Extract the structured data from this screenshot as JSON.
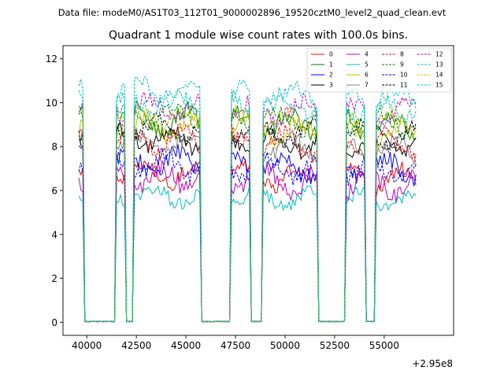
{
  "figure": {
    "suptitle": "Data file: modeM0/AS1T03_112T01_9000002896_19520cztM0_level2_quad_clean.evt"
  },
  "chart_data": {
    "type": "line",
    "title": "Quadrant 1 module wise count rates with 100.0s bins.",
    "xlabel": "",
    "ylabel": "",
    "x_offset_label": "+2.95e8",
    "xlim": [
      38800,
      58500
    ],
    "ylim": [
      -0.6,
      12.6
    ],
    "xticks": [
      40000,
      42500,
      45000,
      47500,
      50000,
      52500,
      55000
    ],
    "xtick_labels": [
      "40000",
      "42500",
      "45000",
      "47500",
      "50000",
      "52500",
      "55000"
    ],
    "yticks": [
      0,
      2,
      4,
      6,
      8,
      10,
      12
    ],
    "ytick_labels": [
      "0",
      "2",
      "4",
      "6",
      "8",
      "10",
      "12"
    ],
    "x_start": 39600,
    "bin_width": 100,
    "on_intervals": [
      [
        39600,
        39800
      ],
      [
        41500,
        41900
      ],
      [
        42400,
        45700
      ],
      [
        47300,
        48200
      ],
      [
        48900,
        51600
      ],
      [
        53100,
        54000
      ],
      [
        54600,
        56600
      ]
    ],
    "series": [
      {
        "name": "0",
        "color": "#ff0000",
        "style": "solid",
        "base": 6.5,
        "amp": 0.35
      },
      {
        "name": "1",
        "color": "#008000",
        "style": "solid",
        "base": 8.9,
        "amp": 0.4
      },
      {
        "name": "2",
        "color": "#0000ff",
        "style": "solid",
        "base": 7.0,
        "amp": 0.4
      },
      {
        "name": "3",
        "color": "#000000",
        "style": "solid",
        "base": 8.1,
        "amp": 0.35
      },
      {
        "name": "4",
        "color": "#bf00bf",
        "style": "solid",
        "base": 6.3,
        "amp": 0.4
      },
      {
        "name": "5",
        "color": "#00bfbf",
        "style": "solid",
        "base": 5.5,
        "amp": 0.3
      },
      {
        "name": "6",
        "color": "#bfbf00",
        "style": "solid",
        "base": 8.6,
        "amp": 0.4
      },
      {
        "name": "7",
        "color": "#808080",
        "style": "solid",
        "base": 7.8,
        "amp": 0.35
      },
      {
        "name": "8",
        "color": "#ff0000",
        "style": "dashed",
        "base": 8.0,
        "amp": 0.4
      },
      {
        "name": "9",
        "color": "#008000",
        "style": "dashed",
        "base": 9.1,
        "amp": 0.35
      },
      {
        "name": "10",
        "color": "#0000ff",
        "style": "dashed",
        "base": 6.9,
        "amp": 0.35
      },
      {
        "name": "11",
        "color": "#000000",
        "style": "dashed",
        "base": 8.5,
        "amp": 0.35
      },
      {
        "name": "12",
        "color": "#bf00bf",
        "style": "dashed",
        "base": 9.5,
        "amp": 0.35
      },
      {
        "name": "13",
        "color": "#00bfbf",
        "style": "dashed",
        "base": 10.2,
        "amp": 0.35
      },
      {
        "name": "14",
        "color": "#bfbf00",
        "style": "dashed",
        "base": 9.0,
        "amp": 0.35
      },
      {
        "name": "15",
        "color": "#00bfbf",
        "style": "dashed",
        "base": 9.8,
        "amp": 0.35
      }
    ],
    "legend": {
      "location": "top-right",
      "columns": 4
    }
  }
}
